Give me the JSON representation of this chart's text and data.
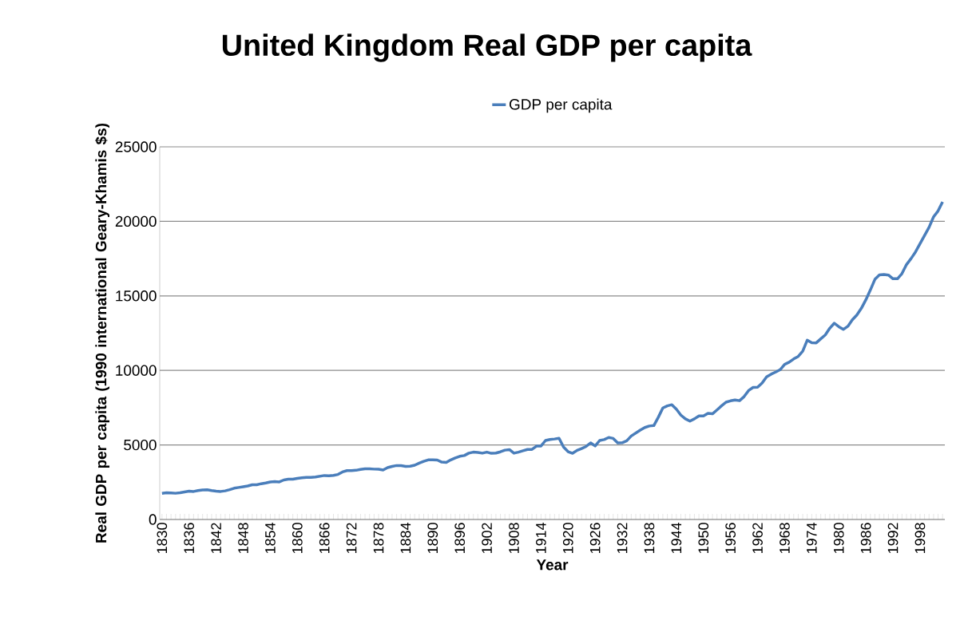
{
  "chart_data": {
    "type": "line",
    "title": "United Kingdom Real GDP per capita",
    "xlabel": "Year",
    "ylabel": "Real GDP per capita (1990 international Geary-Khamis $s)",
    "categories": [
      "1830",
      null,
      null,
      null,
      null,
      null,
      "1836",
      null,
      null,
      null,
      null,
      null,
      "1842",
      null,
      null,
      null,
      null,
      null,
      "1848",
      null,
      null,
      null,
      null,
      null,
      "1854",
      null,
      null,
      null,
      null,
      null,
      "1860",
      null,
      null,
      null,
      null,
      null,
      "1866",
      null,
      null,
      null,
      null,
      null,
      "1872",
      null,
      null,
      null,
      null,
      null,
      "1878",
      null,
      null,
      null,
      null,
      null,
      "1884",
      null,
      null,
      null,
      null,
      null,
      "1890",
      null,
      null,
      null,
      null,
      null,
      "1896",
      null,
      null,
      null,
      null,
      null,
      "1902",
      null,
      null,
      null,
      null,
      null,
      "1908",
      null,
      null,
      null,
      null,
      null,
      "1914",
      null,
      null,
      null,
      null,
      null,
      "1920",
      null,
      null,
      null,
      null,
      null,
      "1926",
      null,
      null,
      null,
      null,
      null,
      "1932",
      null,
      null,
      null,
      null,
      null,
      "1938",
      null,
      null,
      null,
      null,
      null,
      "1944",
      null,
      null,
      null,
      null,
      null,
      "1950",
      null,
      null,
      null,
      null,
      null,
      "1956",
      null,
      null,
      null,
      null,
      null,
      "1962",
      null,
      null,
      null,
      null,
      null,
      "1968",
      null,
      null,
      null,
      null,
      null,
      "1974",
      null,
      null,
      null,
      null,
      null,
      "1980",
      null,
      null,
      null,
      null,
      null,
      "1986",
      null,
      null,
      null,
      null,
      null,
      "1992",
      null,
      null,
      null,
      null,
      null,
      "1998",
      null,
      null,
      null,
      null,
      null
    ],
    "series": [
      {
        "name": "GDP per capita",
        "color": "#4a7ebb",
        "values": [
          1750,
          1790,
          1780,
          1760,
          1790,
          1850,
          1900,
          1880,
          1940,
          1980,
          1990,
          1940,
          1900,
          1880,
          1920,
          2000,
          2100,
          2150,
          2200,
          2250,
          2330,
          2330,
          2400,
          2450,
          2520,
          2540,
          2520,
          2650,
          2700,
          2700,
          2760,
          2800,
          2820,
          2820,
          2850,
          2900,
          2950,
          2930,
          2960,
          3020,
          3190,
          3280,
          3280,
          3300,
          3360,
          3400,
          3400,
          3380,
          3370,
          3320,
          3480,
          3560,
          3620,
          3610,
          3560,
          3570,
          3640,
          3780,
          3900,
          4000,
          4000,
          3990,
          3850,
          3830,
          4000,
          4130,
          4240,
          4290,
          4450,
          4520,
          4500,
          4450,
          4520,
          4440,
          4460,
          4540,
          4650,
          4690,
          4450,
          4520,
          4610,
          4700,
          4700,
          4920,
          4930,
          5300,
          5370,
          5400,
          5450,
          4860,
          4550,
          4440,
          4640,
          4760,
          4900,
          5140,
          4930,
          5300,
          5360,
          5500,
          5440,
          5140,
          5150,
          5280,
          5600,
          5800,
          6000,
          6170,
          6270,
          6300,
          6860,
          7480,
          7620,
          7700,
          7400,
          7000,
          6750,
          6600,
          6750,
          6950,
          6940,
          7120,
          7090,
          7350,
          7620,
          7870,
          7960,
          8020,
          7970,
          8240,
          8650,
          8860,
          8870,
          9150,
          9570,
          9750,
          9890,
          10050,
          10410,
          10550,
          10770,
          10940,
          11290,
          12030,
          11860,
          11850,
          12120,
          12380,
          12830,
          13170,
          12930,
          12750,
          12960,
          13400,
          13720,
          14170,
          14740,
          15400,
          16110,
          16410,
          16430,
          16400,
          16150,
          16150,
          16500,
          17100,
          17500,
          17950,
          18500,
          19050,
          19600,
          20300,
          20700,
          21310
        ]
      }
    ],
    "ylim": [
      0,
      25000
    ],
    "yticks": [
      0,
      5000,
      10000,
      15000,
      20000,
      25000
    ],
    "grid": "y",
    "legend": "top"
  }
}
